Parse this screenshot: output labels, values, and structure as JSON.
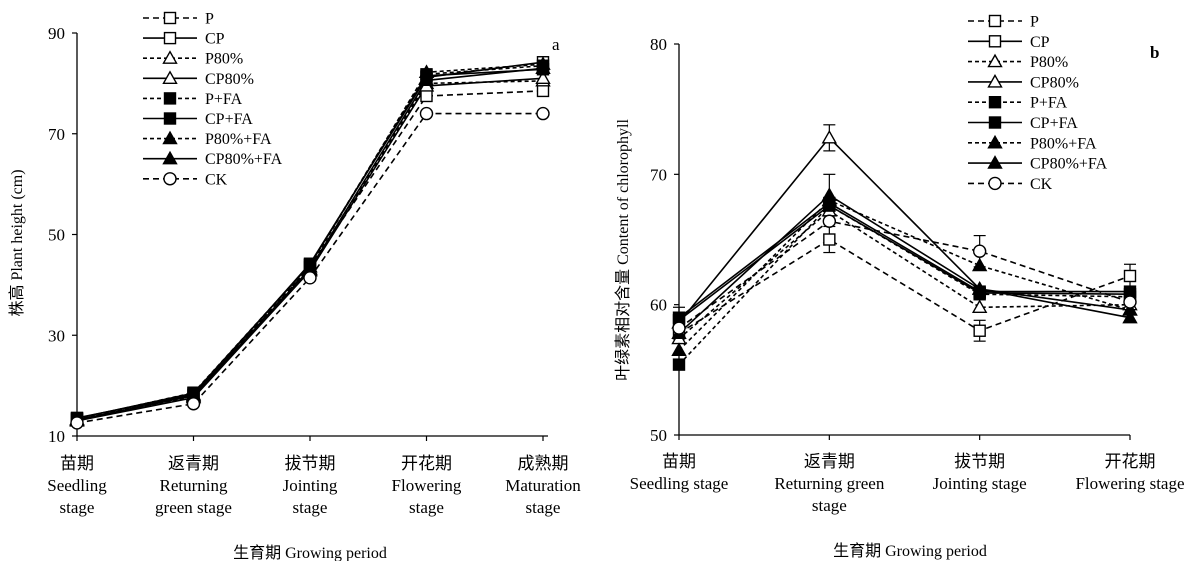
{
  "legend": {
    "entries": [
      "P",
      "CP",
      "P80%",
      "CP80%",
      "P+FA",
      "CP+FA",
      "P80%+FA",
      "CP80%+FA",
      "CK"
    ]
  },
  "chart_data": [
    {
      "type": "line",
      "panel_label": "a",
      "ylabel": "株高  Plant height (cm)",
      "xlabel": "生育期 Growing period",
      "ylim": [
        10,
        90
      ],
      "yticks": [
        10,
        30,
        50,
        70,
        90
      ],
      "grid": false,
      "legend_position": "top-left",
      "categories": [
        [
          "苗期",
          "Seedling",
          "stage"
        ],
        [
          "返青期",
          "Returning",
          "green stage"
        ],
        [
          "拔节期",
          "Jointing",
          "stage"
        ],
        [
          "开花期",
          "Flowering",
          "stage"
        ],
        [
          "成熟期",
          "Maturation",
          "stage"
        ]
      ],
      "series": [
        {
          "name": "P",
          "dash": "6,4",
          "marker": "square-open",
          "values": [
            13.2,
            18.0,
            43.5,
            77.5,
            78.5
          ]
        },
        {
          "name": "CP",
          "dash": "",
          "marker": "square-open",
          "values": [
            13.6,
            18.2,
            44.2,
            81.2,
            84.2
          ]
        },
        {
          "name": "P80%",
          "dash": "4,3",
          "marker": "triangle-open",
          "values": [
            13.2,
            17.8,
            43.0,
            80.0,
            80.5
          ]
        },
        {
          "name": "CP80%",
          "dash": "",
          "marker": "triangle-open",
          "values": [
            13.0,
            17.6,
            42.8,
            79.5,
            81.0
          ]
        },
        {
          "name": "P+FA",
          "dash": "4,3",
          "marker": "square-filled",
          "values": [
            13.4,
            18.6,
            44.0,
            81.8,
            83.5
          ]
        },
        {
          "name": "CP+FA",
          "dash": "",
          "marker": "square-filled",
          "values": [
            13.5,
            18.5,
            44.0,
            81.5,
            82.8
          ]
        },
        {
          "name": "P80%+FA",
          "dash": "4,3",
          "marker": "triangle-filled",
          "values": [
            13.3,
            18.2,
            43.6,
            82.2,
            83.8
          ]
        },
        {
          "name": "CP80%+FA",
          "dash": "",
          "marker": "triangle-filled",
          "values": [
            13.2,
            18.0,
            43.2,
            80.6,
            83.0
          ]
        },
        {
          "name": "CK",
          "dash": "6,4",
          "marker": "circle-open",
          "values": [
            12.6,
            16.4,
            41.4,
            74.0,
            74.0
          ]
        }
      ]
    },
    {
      "type": "line",
      "panel_label": "b",
      "ylabel": "叶绿素相对含量  Content of chlorophyll",
      "xlabel": "生育期 Growing period",
      "ylim": [
        50,
        80
      ],
      "yticks": [
        50,
        60,
        70,
        80
      ],
      "grid": false,
      "legend_position": "top-left",
      "categories": [
        [
          "苗期",
          "Seedling stage"
        ],
        [
          "返青期",
          "Returning green",
          "stage"
        ],
        [
          "拔节期",
          "Jointing stage"
        ],
        [
          "开花期",
          "Flowering stage"
        ]
      ],
      "series": [
        {
          "name": "P",
          "dash": "6,4",
          "marker": "square-open",
          "values": [
            57.8,
            65.0,
            58.0,
            62.2
          ]
        },
        {
          "name": "CP",
          "dash": "",
          "marker": "square-open",
          "values": [
            58.8,
            67.6,
            60.9,
            60.8
          ]
        },
        {
          "name": "P80%",
          "dash": "4,3",
          "marker": "triangle-open",
          "values": [
            57.4,
            67.2,
            59.8,
            60.0
          ]
        },
        {
          "name": "CP80%",
          "dash": "",
          "marker": "triangle-open",
          "values": [
            58.6,
            72.8,
            61.2,
            59.6
          ]
        },
        {
          "name": "P+FA",
          "dash": "4,3",
          "marker": "square-filled",
          "values": [
            55.4,
            67.6,
            60.8,
            60.6
          ]
        },
        {
          "name": "CP+FA",
          "dash": "",
          "marker": "square-filled",
          "values": [
            59.0,
            67.8,
            61.0,
            61.0
          ]
        },
        {
          "name": "P80%+FA",
          "dash": "4,3",
          "marker": "triangle-filled",
          "values": [
            56.5,
            68.0,
            63.0,
            59.6
          ]
        },
        {
          "name": "CP80%+FA",
          "dash": "",
          "marker": "triangle-filled",
          "values": [
            57.8,
            68.4,
            61.2,
            59.0
          ]
        },
        {
          "name": "CK",
          "dash": "6,4",
          "marker": "circle-open",
          "values": [
            58.2,
            66.4,
            64.1,
            60.2
          ]
        }
      ],
      "error_bars": [
        {
          "category_index": 0,
          "value": 59.2,
          "err": 0.6
        },
        {
          "category_index": 1,
          "value": 72.8,
          "err": 1.0
        },
        {
          "category_index": 1,
          "value": 68.4,
          "err": 1.6
        },
        {
          "category_index": 1,
          "value": 65.0,
          "err": 1.0
        },
        {
          "category_index": 2,
          "value": 64.1,
          "err": 1.2
        },
        {
          "category_index": 2,
          "value": 58.0,
          "err": 0.8
        },
        {
          "category_index": 3,
          "value": 62.2,
          "err": 0.9
        }
      ]
    }
  ]
}
